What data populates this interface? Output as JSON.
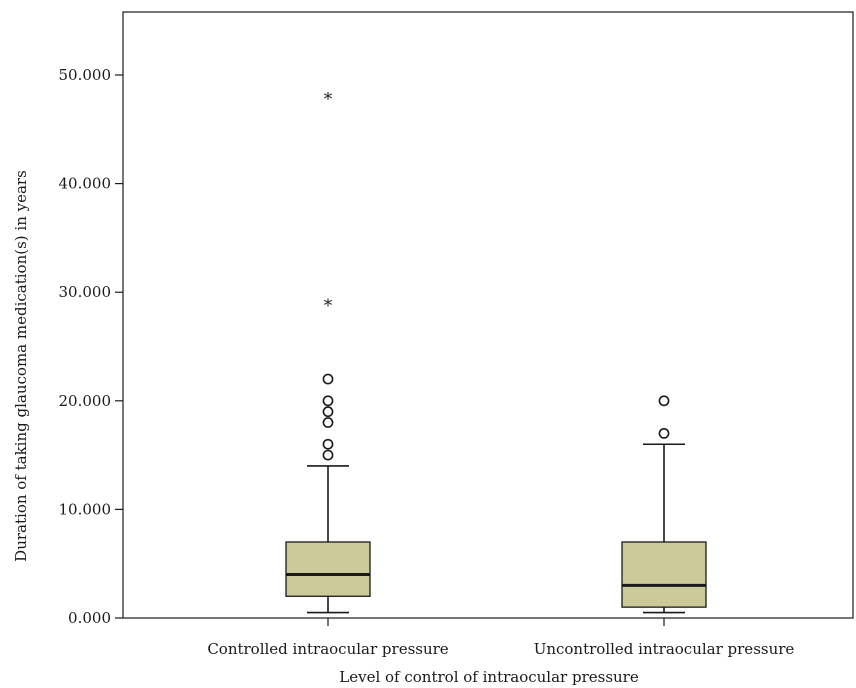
{
  "chart_data": {
    "type": "boxplot",
    "xlabel": "Level of control of intraocular pressure",
    "ylabel": "Duration of taking glaucoma medication(s) in years",
    "ylim": [
      0,
      56
    ],
    "yticks": [
      "0.000",
      "10.000",
      "20.000",
      "30.000",
      "40.000",
      "50.000"
    ],
    "ytick_values": [
      0,
      10,
      20,
      30,
      40,
      50
    ],
    "grid": false,
    "box_color": "#ccc99a",
    "categories": [
      "Controlled intraocular pressure",
      "Uncontrolled intraocular pressure"
    ],
    "boxes": [
      {
        "category": "Controlled intraocular pressure",
        "whisker_low": 0.5,
        "q1": 2,
        "median": 4,
        "q3": 7,
        "whisker_high": 14,
        "outliers": [
          15,
          16,
          18,
          19,
          20,
          22
        ],
        "extremes": [
          29,
          48
        ]
      },
      {
        "category": "Uncontrolled intraocular pressure",
        "whisker_low": 0.5,
        "q1": 1,
        "median": 3,
        "q3": 7,
        "whisker_high": 16,
        "outliers": [
          17,
          20
        ],
        "extremes": []
      }
    ]
  }
}
